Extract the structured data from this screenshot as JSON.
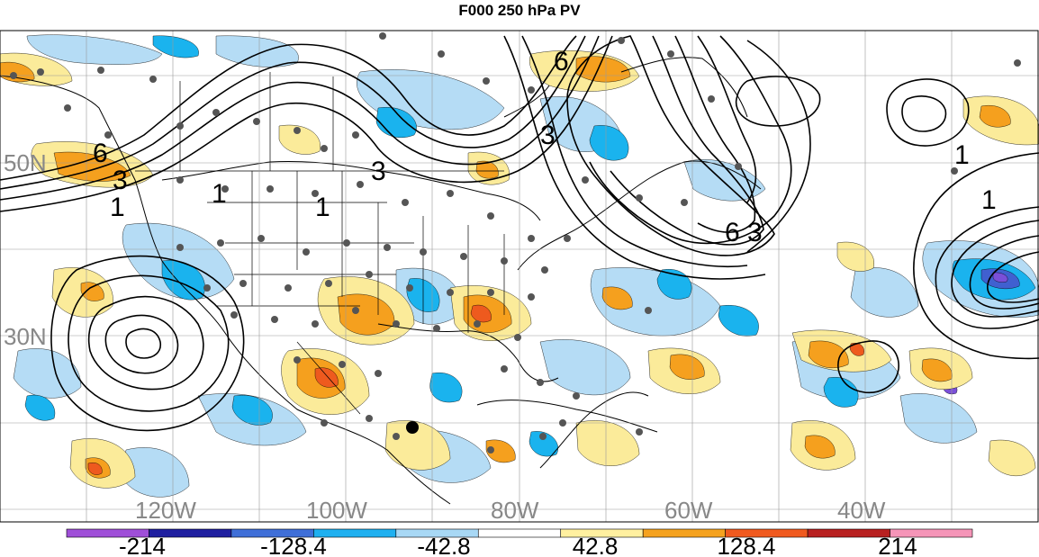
{
  "title": "F000 250 hPa PV",
  "axes": {
    "lon_labels": [
      "120W",
      "100W",
      "80W",
      "60W",
      "40W"
    ],
    "lat_labels": [
      "50N",
      "30N"
    ]
  },
  "contour_labels": [
    "6",
    "3",
    "1",
    "1",
    "3",
    "1",
    "6",
    "3",
    "3",
    "6",
    "1",
    "1"
  ],
  "colorbar": {
    "tick_labels": [
      "-214",
      "-128.4",
      "-42.8",
      "42.8",
      "128.4",
      "214"
    ],
    "colors": [
      "#9f4fd8",
      "#1f1fa0",
      "#3f6fd8",
      "#1fb0f0",
      "#a8d8f5",
      "#ffffff",
      "#fff0a0",
      "#f5a21f",
      "#f05a1f",
      "#b82020",
      "#f595b8"
    ]
  },
  "palette": {
    "light_blue": "#b5dcf5",
    "blue": "#1ab3ee",
    "dark_blue": "#4060d0",
    "purple": "#7a4fd8",
    "yellow": "#fbeb9a",
    "orange": "#f5a01e",
    "red_orange": "#ee5a1e",
    "contour": "#000000",
    "station": "#555555",
    "grid": "#999999"
  }
}
